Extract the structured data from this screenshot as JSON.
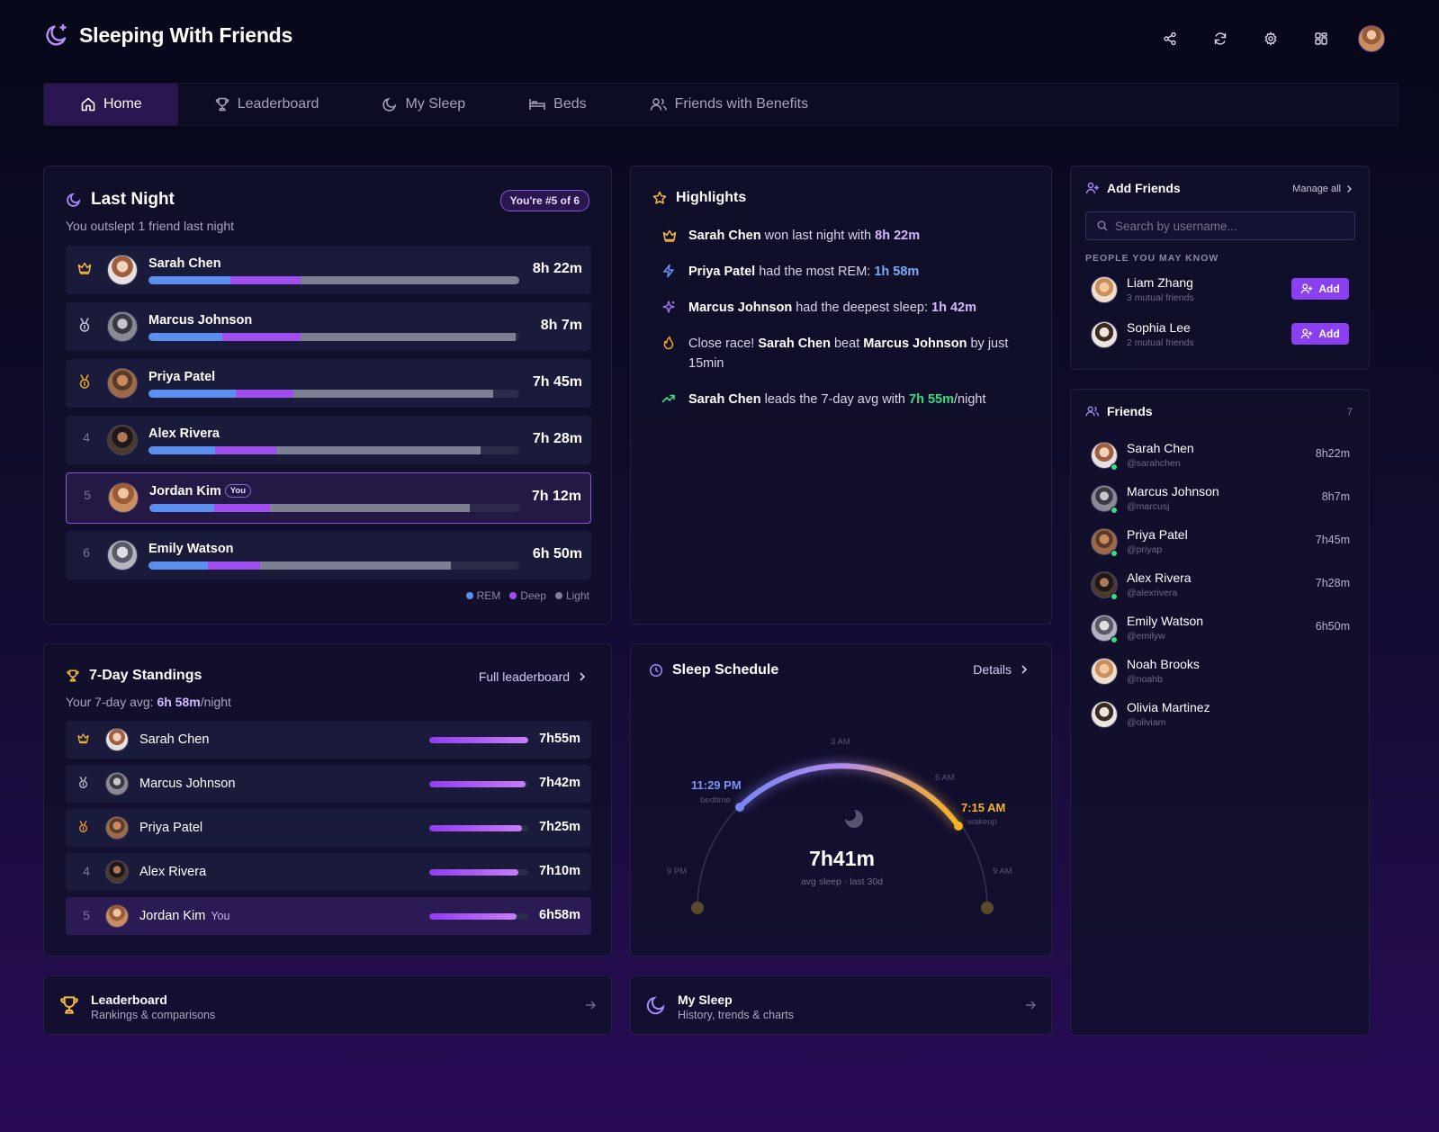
{
  "app": {
    "title": "Sleeping With Friends"
  },
  "nav": {
    "tabs": [
      {
        "label": "Home",
        "icon": "home-icon",
        "active": true
      },
      {
        "label": "Leaderboard",
        "icon": "trophy-icon"
      },
      {
        "label": "My Sleep",
        "icon": "moon-icon"
      },
      {
        "label": "Beds",
        "icon": "bed-icon"
      },
      {
        "label": "Friends with Benefits",
        "icon": "users-icon"
      }
    ]
  },
  "last_night": {
    "title": "Last Night",
    "badge": "You're #5 of 6",
    "subtitle": "You outslept 1 friend last night",
    "rows": [
      {
        "rank": "",
        "rank_icon": "crown-icon",
        "name": "Sarah Chen",
        "time": "8h 22m",
        "rem": 0.22,
        "deep": 0.19,
        "light": 0.59
      },
      {
        "rank": "",
        "rank_icon": "silver-medal-icon",
        "name": "Marcus Johnson",
        "time": "8h 7m",
        "rem": 0.2,
        "deep": 0.21,
        "light": 0.58
      },
      {
        "rank": "",
        "rank_icon": "bronze-medal-icon",
        "name": "Priya Patel",
        "time": "7h 45m",
        "rem": 0.235,
        "deep": 0.155,
        "light": 0.54
      },
      {
        "rank": "4",
        "name": "Alex Rivera",
        "time": "7h 28m",
        "rem": 0.18,
        "deep": 0.165,
        "light": 0.55
      },
      {
        "rank": "5",
        "name": "Jordan Kim",
        "you": "You",
        "time": "7h 12m",
        "rem": 0.175,
        "deep": 0.15,
        "light": 0.54
      },
      {
        "rank": "6",
        "name": "Emily Watson",
        "time": "6h 50m",
        "rem": 0.16,
        "deep": 0.14,
        "light": 0.515
      }
    ],
    "legend": {
      "rem": "REM",
      "deep": "Deep",
      "light": "Light"
    },
    "colors": {
      "rem": "#5b8ff0",
      "deep": "#a04ef0",
      "light": "#7d7f93"
    }
  },
  "highlights": {
    "title": "Highlights",
    "items": [
      {
        "icon": "crown-icon",
        "parts": [
          [
            "b",
            "Sarah Chen"
          ],
          [
            "t",
            " won last night with "
          ],
          [
            "p",
            "8h 22m"
          ]
        ]
      },
      {
        "icon": "zap-icon",
        "parts": [
          [
            "b",
            "Priya Patel"
          ],
          [
            "t",
            " had the most REM: "
          ],
          [
            "bl",
            "1h 58m"
          ]
        ]
      },
      {
        "icon": "sparkle-icon",
        "parts": [
          [
            "b",
            "Marcus Johnson"
          ],
          [
            "t",
            " had the deepest sleep: "
          ],
          [
            "p",
            "1h 42m"
          ]
        ]
      },
      {
        "icon": "flame-icon",
        "parts": [
          [
            "t",
            "Close race! "
          ],
          [
            "b",
            "Sarah Chen"
          ],
          [
            "t",
            " beat "
          ],
          [
            "b",
            "Marcus Johnson"
          ],
          [
            "t",
            " by just 15min"
          ]
        ]
      },
      {
        "icon": "trend-icon",
        "parts": [
          [
            "b",
            "Sarah Chen"
          ],
          [
            "t",
            " leads the 7-day avg with "
          ],
          [
            "g",
            "7h 55m"
          ],
          [
            "t",
            "/night"
          ]
        ]
      }
    ]
  },
  "add_friends": {
    "title": "Add Friends",
    "manage": "Manage all",
    "search_placeholder": "Search by username...",
    "section": "PEOPLE YOU MAY KNOW",
    "add_label": "Add",
    "people": [
      {
        "name": "Liam Zhang",
        "mutual": "3 mutual friends"
      },
      {
        "name": "Sophia Lee",
        "mutual": "2 mutual friends"
      }
    ]
  },
  "friends": {
    "title": "Friends",
    "count": "7",
    "list": [
      {
        "name": "Sarah Chen",
        "handle": "@sarahchen",
        "time": "8h22m",
        "online": true
      },
      {
        "name": "Marcus Johnson",
        "handle": "@marcusj",
        "time": "8h7m",
        "online": true
      },
      {
        "name": "Priya Patel",
        "handle": "@priyap",
        "time": "7h45m",
        "online": true
      },
      {
        "name": "Alex Rivera",
        "handle": "@alexrivera",
        "time": "7h28m",
        "online": true
      },
      {
        "name": "Emily Watson",
        "handle": "@emilyw",
        "time": "6h50m",
        "online": true
      },
      {
        "name": "Noah Brooks",
        "handle": "@noahb",
        "time": "",
        "online": false
      },
      {
        "name": "Olivia Martinez",
        "handle": "@oliviam",
        "time": "",
        "online": false
      }
    ]
  },
  "standings": {
    "title": "7-Day Standings",
    "link": "Full leaderboard",
    "avg_prefix": "Your 7-day avg: ",
    "avg_value": "6h 58m",
    "avg_suffix": "/night",
    "rows": [
      {
        "rank": "",
        "rank_icon": "crown-icon",
        "name": "Sarah Chen",
        "time": "7h55m",
        "fill": 1.0
      },
      {
        "rank": "",
        "rank_icon": "silver-medal-icon",
        "name": "Marcus Johnson",
        "time": "7h42m",
        "fill": 0.97
      },
      {
        "rank": "",
        "rank_icon": "bronze-medal-icon",
        "name": "Priya Patel",
        "time": "7h25m",
        "fill": 0.94
      },
      {
        "rank": "4",
        "name": "Alex Rivera",
        "time": "7h10m",
        "fill": 0.9
      },
      {
        "rank": "5",
        "name": "Jordan Kim",
        "you": "You",
        "time": "6h58m",
        "fill": 0.88
      }
    ]
  },
  "schedule": {
    "title": "Sleep Schedule",
    "link": "Details",
    "bedtime": "11:29 PM",
    "bedtime_label": "bedtime",
    "wakeup": "7:15 AM",
    "wakeup_label": "wakeup",
    "avg": "7h41m",
    "avg_label": "avg sleep · last 30d",
    "ticks": [
      "9 PM",
      "3 AM",
      "6 AM",
      "9 AM"
    ]
  },
  "quick_links": [
    {
      "title": "Leaderboard",
      "subtitle": "Rankings & comparisons",
      "icon": "trophy-icon"
    },
    {
      "title": "My Sleep",
      "subtitle": "History, trends & charts",
      "icon": "moon-icon"
    }
  ]
}
